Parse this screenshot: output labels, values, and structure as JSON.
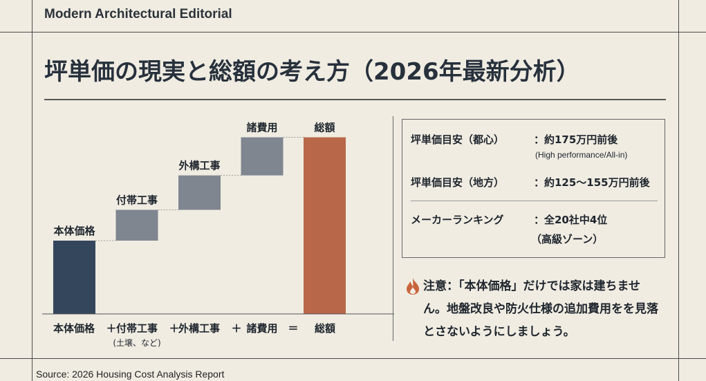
{
  "header": {
    "brand": "Modern Architectural Editorial",
    "title": "坪単価の現実と総額の考え方（2026年最新分析）"
  },
  "chart_data": {
    "type": "bar",
    "subtype": "waterfall",
    "categories": [
      "本体価格",
      "付帯工事",
      "外構工事",
      "諸費用",
      "総額"
    ],
    "values": [
      100,
      42,
      47,
      52,
      241
    ],
    "bottom_labels": [
      "本体価格",
      "＋",
      "付帯工事",
      "＋",
      "外構工事",
      "＋",
      "諸費用",
      "＝",
      "総額"
    ],
    "bottom_sublabel": "(土壌、など)",
    "colors": {
      "base": "#34465c",
      "increment": "#7f8690",
      "total": "#b86848"
    },
    "axis": "none",
    "grid": false
  },
  "info": {
    "rows": [
      {
        "label": "坪単価目安（都心）",
        "value": "：約175万円前後",
        "note": "(High performance/All-in)"
      },
      {
        "label": "坪単価目安（地方）",
        "value": "：約125〜155万円前後"
      },
      {
        "label": "メーカーランキング",
        "value": "：全20社中4位",
        "note": "（高級ゾーン）"
      }
    ]
  },
  "note": {
    "icon": "fire-icon",
    "text": "注意：「本体価格」だけでは家は建ちません。地盤改良や防火仕様の追加費用をを見落とさないようにしましょう。",
    "icon_color": "#c8643c"
  },
  "footer": {
    "source": "Source: 2026 Housing Cost Analysis Report"
  }
}
